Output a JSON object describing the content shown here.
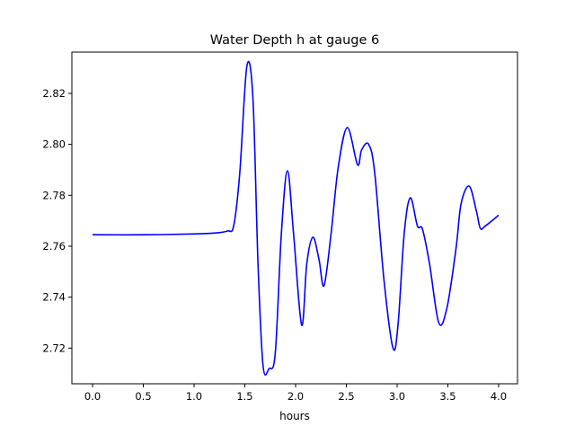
{
  "chart_data": {
    "type": "line",
    "title": "Water Depth h at gauge 6",
    "xlabel": "hours",
    "ylabel": "",
    "xlim": [
      -0.2035,
      4.186
    ],
    "ylim": [
      2.706,
      2.8362
    ],
    "xticks": [
      0,
      0.5,
      1,
      1.5,
      2,
      2.5,
      3,
      3.5,
      4
    ],
    "xtick_labels": [
      "0.0",
      "0.5",
      "1.0",
      "1.5",
      "2.0",
      "2.5",
      "3.0",
      "3.5",
      "4.0"
    ],
    "yticks": [
      2.72,
      2.74,
      2.76,
      2.78,
      2.8,
      2.82
    ],
    "ytick_labels": [
      "2.72",
      "2.74",
      "2.76",
      "2.78",
      "2.80",
      "2.82"
    ],
    "grid": false,
    "series": [
      {
        "name": "h",
        "color": "#0000ff",
        "x": [
          0,
          0.5,
          1.0,
          1.21,
          1.33,
          1.39,
          1.45,
          1.52,
          1.58,
          1.63,
          1.68,
          1.74,
          1.8,
          1.86,
          1.92,
          1.98,
          2.06,
          2.11,
          2.17,
          2.23,
          2.28,
          2.35,
          2.42,
          2.51,
          2.61,
          2.65,
          2.72,
          2.78,
          2.87,
          2.96,
          3.01,
          3.07,
          3.13,
          3.2,
          3.25,
          3.32,
          3.41,
          3.49,
          3.58,
          3.63,
          3.71,
          3.78,
          3.82,
          3.87,
          3.98,
          4.0
        ],
        "y": [
          2.7645,
          2.7645,
          2.7648,
          2.7652,
          2.766,
          2.768,
          2.7886,
          2.8306,
          2.818,
          2.753,
          2.713,
          2.712,
          2.718,
          2.765,
          2.7896,
          2.765,
          2.729,
          2.753,
          2.7635,
          2.755,
          2.7445,
          2.765,
          2.791,
          2.8066,
          2.792,
          2.7978,
          2.8,
          2.7886,
          2.747,
          2.72,
          2.7296,
          2.765,
          2.779,
          2.768,
          2.7667,
          2.753,
          2.73,
          2.7356,
          2.759,
          2.7766,
          2.7836,
          2.774,
          2.767,
          2.768,
          2.7715,
          2.7722
        ]
      }
    ]
  }
}
